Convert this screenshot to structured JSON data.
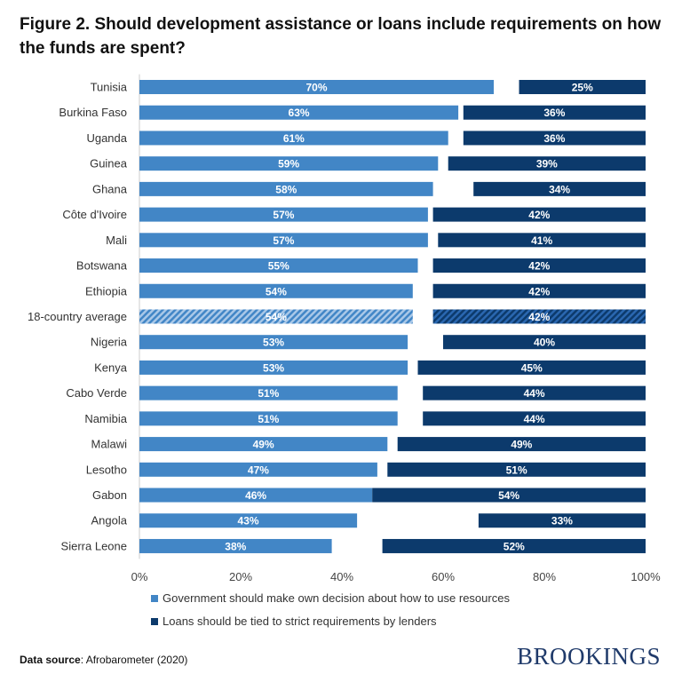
{
  "title": "Figure 2. Should development assistance or loans include requirements on how the funds are spent?",
  "source_label": "Data source",
  "source_text": ": Afrobarometer (2020)",
  "logo": "BROOKINGS",
  "chart_data": {
    "type": "bar",
    "orientation": "horizontal",
    "stacked_aligned": "first series from left, second series from right",
    "categories": [
      "Tunisia",
      "Burkina Faso",
      "Uganda",
      "Guinea",
      "Ghana",
      "Côte d'Ivoire",
      "Mali",
      "Botswana",
      "Ethiopia",
      "18-country average",
      "Nigeria",
      "Kenya",
      "Cabo Verde",
      "Namibia",
      "Malawi",
      "Lesotho",
      "Gabon",
      "Angola",
      "Sierra Leone"
    ],
    "highlighted_category": "18-country average",
    "series": [
      {
        "name": "Government should make own decision about how to use resources",
        "color": "#4286c6",
        "values": [
          70,
          63,
          61,
          59,
          58,
          57,
          57,
          55,
          54,
          54,
          53,
          53,
          51,
          51,
          49,
          47,
          46,
          43,
          38
        ]
      },
      {
        "name": "Loans should be tied to strict requirements by lenders",
        "color": "#0c3a6c",
        "values": [
          25,
          36,
          36,
          39,
          34,
          42,
          41,
          42,
          42,
          42,
          40,
          45,
          44,
          44,
          49,
          51,
          54,
          33,
          52
        ]
      }
    ],
    "xlim": [
      0,
      100
    ],
    "xticks": [
      "0%",
      "20%",
      "40%",
      "60%",
      "80%",
      "100%"
    ],
    "legend_position": "bottom",
    "grid": false
  }
}
